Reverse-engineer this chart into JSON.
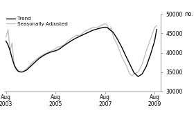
{
  "ylabel": "no.",
  "ylim": [
    30000,
    50000
  ],
  "yticks": [
    30000,
    35000,
    40000,
    45000,
    50000
  ],
  "xlim_start": 2003.5,
  "xlim_end": 2009.83,
  "xtick_positions": [
    2003.583,
    2005.583,
    2007.583,
    2009.583
  ],
  "xtick_labels": [
    "Aug\n2003",
    "Aug\n2005",
    "Aug\n2007",
    "Aug\n2009"
  ],
  "legend_entries": [
    "Trend",
    "Seasonally Adjusted"
  ],
  "trend_color": "#000000",
  "seasonal_color": "#bbbbbb",
  "background_color": "#ffffff",
  "trend_data": {
    "t": [
      2003.583,
      2003.667,
      2003.75,
      2003.833,
      2003.917,
      2004.0,
      2004.083,
      2004.167,
      2004.25,
      2004.417,
      2004.583,
      2004.75,
      2004.917,
      2005.083,
      2005.25,
      2005.417,
      2005.583,
      2005.667,
      2005.75,
      2005.917,
      2006.083,
      2006.25,
      2006.417,
      2006.583,
      2006.75,
      2006.917,
      2007.083,
      2007.25,
      2007.417,
      2007.583,
      2007.667,
      2007.75,
      2007.917,
      2008.083,
      2008.25,
      2008.417,
      2008.583,
      2008.75,
      2008.917,
      2009.083,
      2009.25,
      2009.417,
      2009.583,
      2009.667
    ],
    "v": [
      43000,
      42000,
      40500,
      38500,
      36800,
      35800,
      35200,
      35000,
      35000,
      35500,
      36500,
      37500,
      38500,
      39200,
      39800,
      40200,
      40500,
      40700,
      41000,
      41800,
      42500,
      43200,
      43800,
      44300,
      44800,
      45300,
      45800,
      46100,
      46400,
      46600,
      46500,
      46100,
      45200,
      43500,
      41500,
      39200,
      37000,
      34800,
      33800,
      34500,
      36500,
      39500,
      43000,
      46000
    ]
  },
  "seasonal_data": {
    "t": [
      2003.583,
      2003.667,
      2003.75,
      2003.833,
      2003.917,
      2004.0,
      2004.083,
      2004.167,
      2004.25,
      2004.417,
      2004.583,
      2004.75,
      2004.917,
      2005.083,
      2005.25,
      2005.417,
      2005.583,
      2005.667,
      2005.75,
      2005.917,
      2006.083,
      2006.25,
      2006.417,
      2006.583,
      2006.75,
      2006.917,
      2007.083,
      2007.25,
      2007.417,
      2007.583,
      2007.667,
      2007.75,
      2007.833,
      2007.917,
      2008.083,
      2008.25,
      2008.417,
      2008.583,
      2008.667,
      2008.75,
      2008.917,
      2009.083,
      2009.25,
      2009.417,
      2009.583,
      2009.667
    ],
    "v": [
      44000,
      46000,
      40500,
      42500,
      36500,
      35500,
      35000,
      35000,
      35000,
      35800,
      37000,
      38000,
      38800,
      39500,
      40000,
      40500,
      41000,
      41500,
      41500,
      42000,
      43000,
      43800,
      44500,
      44500,
      45500,
      46000,
      46500,
      46500,
      47000,
      47500,
      47200,
      46000,
      46500,
      44000,
      42000,
      39000,
      37000,
      34500,
      34000,
      34500,
      35000,
      37000,
      40500,
      43500,
      46500,
      47000
    ]
  }
}
